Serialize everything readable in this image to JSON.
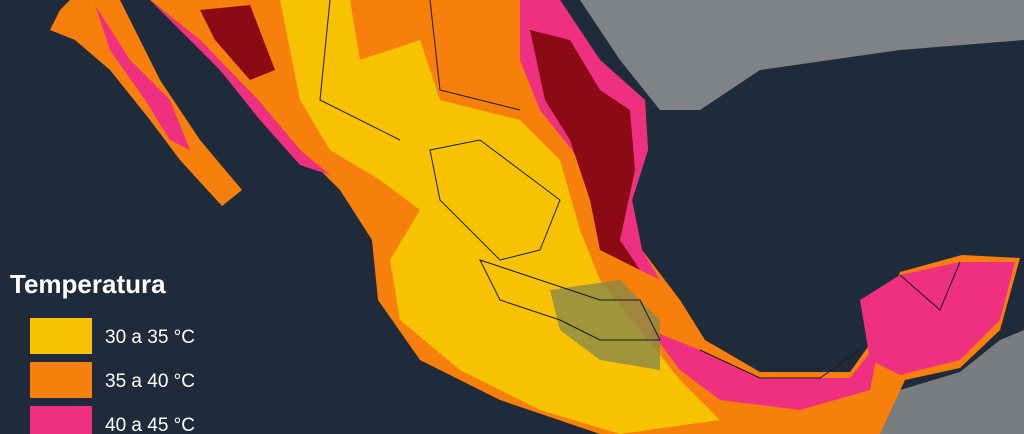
{
  "legend": {
    "title": "Temperatura",
    "items": [
      {
        "label": "30 a 35 °C",
        "color": "#f7c300"
      },
      {
        "label": "35 a 40 °C",
        "color": "#f77f0c"
      },
      {
        "label": "40 a 45 °C",
        "color": "#ef2f7f"
      }
    ]
  }
}
